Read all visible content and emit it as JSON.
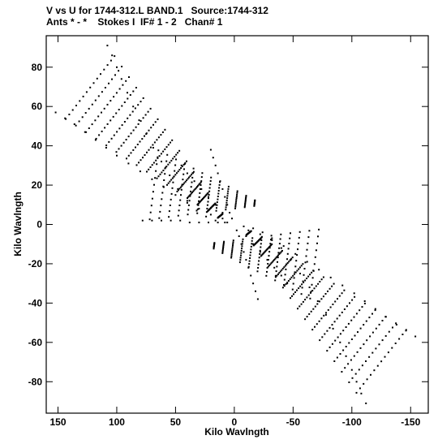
{
  "chart_data": {
    "type": "scatter",
    "title_line1": "V vs U for 1744-312.L BAND.1   Source:1744-312",
    "title_line2": "Ants * - *    Stokes I  IF# 1 - 2   Chan# 1",
    "xlabel": "Kilo Wavlngth",
    "ylabel": "Kilo Wavlngth",
    "xlim": [
      160,
      -165
    ],
    "ylim": [
      -96,
      96
    ],
    "x_axis_reversed": true,
    "xticks": [
      150,
      100,
      50,
      0,
      -50,
      -100,
      -150
    ],
    "xtick_labels": [
      "150",
      "100",
      "50",
      "0",
      "-50",
      "-100",
      "-150"
    ],
    "yticks": [
      80,
      60,
      40,
      20,
      0,
      -20,
      -40,
      -60,
      -80
    ],
    "ytick_labels": [
      "80",
      "60",
      "40",
      "20",
      "0",
      "-20",
      "-40",
      "-60",
      "-80"
    ],
    "grid": false,
    "marker_color": "#000000",
    "spokes_note": "uv coverage: radial baseline tracks plus conjugate points",
    "series": [
      {
        "values": [
          [
            108,
            91
          ],
          [
            104,
            86
          ],
          [
            100,
            80
          ],
          [
            96,
            74
          ],
          [
            91,
            67
          ],
          [
            86,
            60
          ],
          [
            81,
            53
          ],
          [
            75,
            46
          ],
          [
            69,
            39
          ],
          [
            62,
            32
          ],
          [
            55,
            25
          ],
          [
            48,
            18
          ],
          [
            40,
            12
          ],
          [
            32,
            7
          ],
          [
            24,
            4
          ],
          [
            16,
            2
          ],
          [
            8,
            1
          ],
          [
            152,
            57
          ],
          [
            144,
            54
          ],
          [
            136,
            51
          ],
          [
            127,
            47
          ],
          [
            118,
            43
          ],
          [
            109,
            39
          ],
          [
            100,
            35
          ],
          [
            90,
            31
          ],
          [
            80,
            27
          ],
          [
            70,
            23
          ],
          [
            60,
            19
          ],
          [
            50,
            15
          ],
          [
            40,
            11
          ],
          [
            30,
            8
          ],
          [
            20,
            5
          ],
          [
            10,
            3
          ],
          [
            78,
            2
          ],
          [
            70,
            2
          ],
          [
            62,
            2
          ],
          [
            54,
            2
          ],
          [
            46,
            2
          ],
          [
            38,
            1
          ],
          [
            30,
            1
          ],
          [
            22,
            1
          ],
          [
            14,
            1
          ],
          [
            6,
            1
          ],
          [
            20,
            38
          ],
          [
            18,
            34
          ],
          [
            16,
            30
          ],
          [
            14,
            26
          ],
          [
            12,
            22
          ],
          [
            10,
            18
          ],
          [
            8,
            14
          ],
          [
            6,
            10
          ],
          [
            4,
            6
          ],
          [
            2,
            3
          ],
          [
            45,
            30
          ],
          [
            40,
            26
          ],
          [
            34,
            22
          ],
          [
            28,
            18
          ],
          [
            22,
            14
          ],
          [
            16,
            10
          ],
          [
            10,
            6
          ],
          [
            -112,
            -91
          ],
          [
            -108,
            -86
          ],
          [
            -104,
            -80
          ],
          [
            -100,
            -74
          ],
          [
            -95,
            -67
          ],
          [
            -90,
            -60
          ],
          [
            -84,
            -53
          ],
          [
            -78,
            -46
          ],
          [
            -71,
            -39
          ],
          [
            -64,
            -32
          ],
          [
            -56,
            -25
          ],
          [
            -48,
            -18
          ],
          [
            -40,
            -12
          ],
          [
            -32,
            -7
          ],
          [
            -24,
            -4
          ],
          [
            -16,
            -2
          ],
          [
            -8,
            -1
          ],
          [
            -154,
            -57
          ],
          [
            -146,
            -54
          ],
          [
            -138,
            -51
          ],
          [
            -129,
            -47
          ],
          [
            -120,
            -43
          ],
          [
            -111,
            -39
          ],
          [
            -102,
            -35
          ],
          [
            -92,
            -31
          ],
          [
            -82,
            -27
          ],
          [
            -72,
            -23
          ],
          [
            -62,
            -19
          ],
          [
            -52,
            -15
          ],
          [
            -42,
            -11
          ],
          [
            -32,
            -8
          ],
          [
            -22,
            -5
          ],
          [
            -12,
            -3
          ],
          [
            -20,
            -38
          ],
          [
            -18,
            -34
          ],
          [
            -16,
            -30
          ],
          [
            -14,
            -26
          ],
          [
            -12,
            -22
          ],
          [
            -10,
            -18
          ],
          [
            -8,
            -14
          ],
          [
            -6,
            -10
          ],
          [
            -4,
            -6
          ],
          [
            -2,
            -3
          ],
          [
            -45,
            -30
          ],
          [
            -40,
            -26
          ],
          [
            -34,
            -22
          ],
          [
            -28,
            -18
          ],
          [
            -22,
            -14
          ],
          [
            -16,
            -10
          ],
          [
            -10,
            -6
          ]
        ]
      }
    ],
    "fill_region_note": "additional uv tracks fill the rhombic region between arms"
  }
}
